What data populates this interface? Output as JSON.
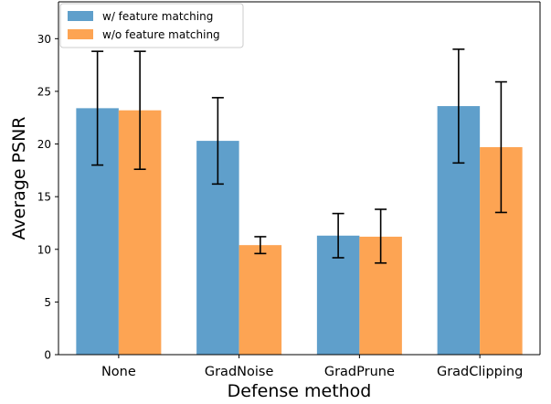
{
  "chart_data": {
    "type": "bar",
    "xlabel": "Defense method",
    "ylabel": "Average PSNR",
    "categories": [
      "None",
      "GradNoise",
      "GradPrune",
      "GradClipping"
    ],
    "ylim": [
      0,
      33.5
    ],
    "yticks": [
      0,
      5,
      10,
      15,
      20,
      25,
      30
    ],
    "grid": false,
    "legend_position": "top-left",
    "series": [
      {
        "name": "w/ feature matching",
        "color": "#5f9fcb",
        "values": [
          23.4,
          20.3,
          11.3,
          23.6
        ],
        "err_low": [
          18.0,
          16.2,
          9.2,
          18.2
        ],
        "err_high": [
          28.8,
          24.4,
          13.4,
          29.0
        ]
      },
      {
        "name": "w/o feature matching",
        "color": "#fda453",
        "values": [
          23.2,
          10.4,
          11.2,
          19.7
        ],
        "err_low": [
          17.6,
          9.6,
          8.7,
          13.5
        ],
        "err_high": [
          28.8,
          11.2,
          13.8,
          25.9
        ]
      }
    ]
  }
}
